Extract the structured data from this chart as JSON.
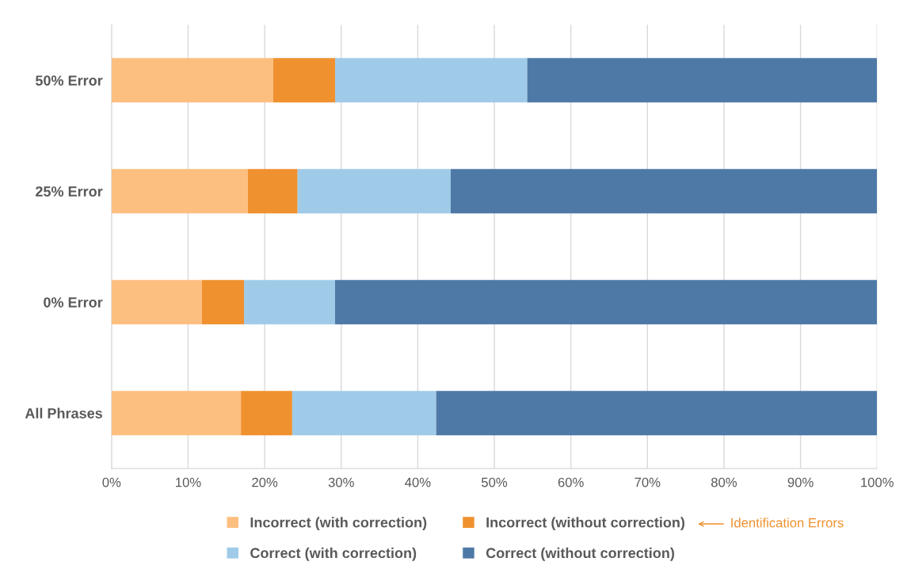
{
  "chart_data": {
    "type": "bar",
    "orientation": "horizontal",
    "stacked": true,
    "categories": [
      "50% Error",
      "25% Error",
      "0% Error",
      "All Phrases"
    ],
    "series": [
      {
        "name": "Incorrect (with correction)",
        "color": "#fdbf80",
        "values": [
          21.1,
          17.8,
          11.8,
          16.9
        ]
      },
      {
        "name": "Incorrect (without correction)",
        "color": "#f0912f",
        "values": [
          8.1,
          6.5,
          5.5,
          6.7
        ]
      },
      {
        "name": "Correct (with correction)",
        "color": "#a0cbe8",
        "values": [
          25.1,
          20.0,
          11.9,
          18.8
        ]
      },
      {
        "name": "Correct (without correction)",
        "color": "#4e79a7",
        "values": [
          45.7,
          55.7,
          70.8,
          57.6
        ]
      }
    ],
    "xlim": [
      0,
      100
    ],
    "xticks": [
      {
        "value": 0,
        "label": "0%"
      },
      {
        "value": 10,
        "label": "10%"
      },
      {
        "value": 20,
        "label": "20%"
      },
      {
        "value": 30,
        "label": "30%"
      },
      {
        "value": 40,
        "label": "40%"
      },
      {
        "value": 50,
        "label": "50%"
      },
      {
        "value": 60,
        "label": "60%"
      },
      {
        "value": 70,
        "label": "70%"
      },
      {
        "value": 80,
        "label": "80%"
      },
      {
        "value": 90,
        "label": "90%"
      },
      {
        "value": 100,
        "label": "100%"
      }
    ],
    "grid": "x",
    "legend": "bottom",
    "annotations": [
      "Identification Errors"
    ]
  }
}
